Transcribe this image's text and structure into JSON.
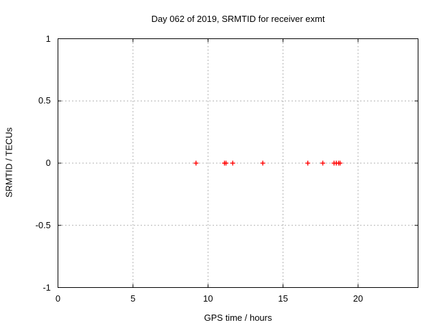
{
  "title": "Day 062 of 2019, SRMTID for receiver exmt",
  "chart_data": {
    "type": "scatter",
    "title": "Day 062 of 2019, SRMTID for receiver exmt",
    "xlabel": "GPS time / hours",
    "ylabel": "SRMTID / TECUs",
    "xlim": [
      0,
      24
    ],
    "ylim": [
      -1,
      1
    ],
    "xticks": [
      {
        "value": 0,
        "label": "0"
      },
      {
        "value": 5,
        "label": "5"
      },
      {
        "value": 10,
        "label": "10"
      },
      {
        "value": 15,
        "label": "15"
      },
      {
        "value": 20,
        "label": "20"
      }
    ],
    "yticks": [
      {
        "value": -1,
        "label": "-1"
      },
      {
        "value": -0.5,
        "label": "-0.5"
      },
      {
        "value": 0,
        "label": "0"
      },
      {
        "value": 0.5,
        "label": "0.5"
      },
      {
        "value": 1,
        "label": "1"
      }
    ],
    "grid": true,
    "legend": "none",
    "series": [
      {
        "name": "SRMTID",
        "marker": "plus",
        "color": "#ff0000",
        "points": [
          {
            "x": 9.2,
            "y": 0
          },
          {
            "x": 11.1,
            "y": 0
          },
          {
            "x": 11.2,
            "y": 0
          },
          {
            "x": 11.65,
            "y": 0
          },
          {
            "x": 13.65,
            "y": 0
          },
          {
            "x": 16.65,
            "y": 0
          },
          {
            "x": 17.65,
            "y": 0
          },
          {
            "x": 18.4,
            "y": 0
          },
          {
            "x": 18.55,
            "y": 0
          },
          {
            "x": 18.7,
            "y": 0
          },
          {
            "x": 18.8,
            "y": 0
          }
        ]
      }
    ],
    "styles": {
      "background": "#ffffff",
      "border_color": "#000000",
      "grid_color": "#b0b0b0",
      "text_color": "#000000"
    }
  }
}
